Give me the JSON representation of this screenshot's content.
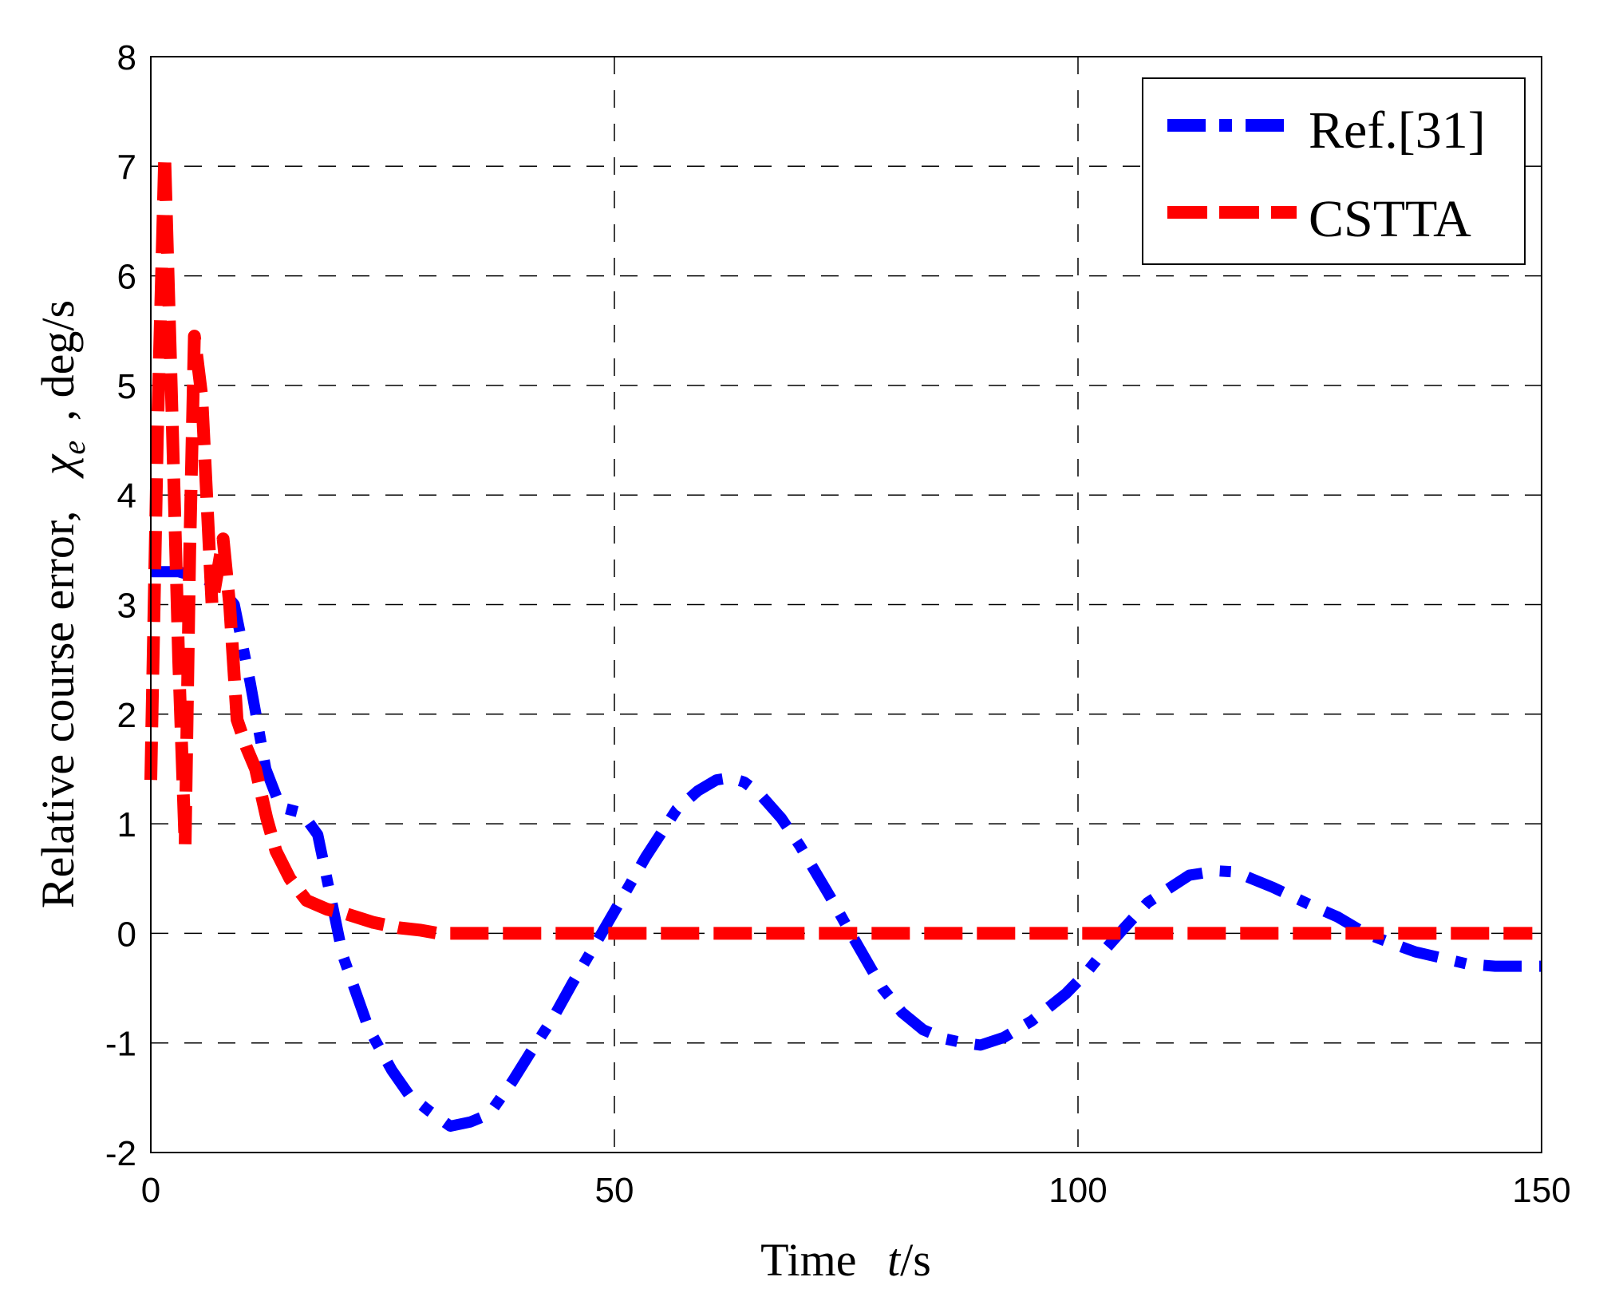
{
  "chart_data": {
    "type": "line",
    "title": "",
    "xlabel": "Time  t/s",
    "xlabel_parts": {
      "prefix": "Time",
      "italic": "t",
      "suffix": "/s"
    },
    "ylabel": "Relative course error,  χe , deg/s",
    "ylabel_parts": {
      "prefix": "Relative course error,",
      "symbol": "χ",
      "subscript": "e",
      "suffix": ", deg/s"
    },
    "xlim": [
      0,
      150
    ],
    "ylim": [
      -2,
      8
    ],
    "xticks": [
      0,
      50,
      100,
      150
    ],
    "yticks": [
      -2,
      -1,
      0,
      1,
      2,
      3,
      4,
      5,
      6,
      7,
      8
    ],
    "grid": true,
    "grid_style": "dashed",
    "legend_position": "upper right",
    "series": [
      {
        "name": "Ref.[31]",
        "color": "#0000ff",
        "style": "dash-dot",
        "x": [
          0,
          1,
          3,
          5,
          7,
          9,
          10.7,
          12.4,
          14,
          16.3,
          18,
          19.6,
          20.7,
          23.5,
          26,
          27.9,
          30,
          32.3,
          34.5,
          36.5,
          39,
          41,
          43.4,
          45.5,
          47.8,
          50,
          53.4,
          56.7,
          59,
          61,
          62.5,
          64,
          65.6,
          68,
          70,
          73.3,
          75.5,
          78.9,
          81,
          83.3,
          85.5,
          87.7,
          89.5,
          92,
          95,
          98.7,
          101,
          103,
          105,
          107.5,
          110,
          112,
          115,
          117,
          118.7,
          121,
          125.3,
          128,
          131,
          133.5,
          136.4,
          139,
          142,
          145,
          148,
          150
        ],
        "y": [
          3.3,
          3.3,
          3.3,
          3.25,
          3.2,
          3.0,
          2.3,
          1.5,
          1.15,
          1.1,
          0.9,
          0.25,
          -0.2,
          -0.87,
          -1.25,
          -1.48,
          -1.62,
          -1.76,
          -1.72,
          -1.65,
          -1.35,
          -1.08,
          -0.77,
          -0.45,
          -0.12,
          0.2,
          0.7,
          1.13,
          1.3,
          1.4,
          1.42,
          1.38,
          1.28,
          1.05,
          0.8,
          0.33,
          0.0,
          -0.5,
          -0.72,
          -0.88,
          -0.96,
          -1.0,
          -1.02,
          -0.95,
          -0.8,
          -0.55,
          -0.35,
          -0.14,
          0.05,
          0.28,
          0.42,
          0.53,
          0.57,
          0.56,
          0.5,
          0.42,
          0.25,
          0.15,
          0.0,
          -0.08,
          -0.17,
          -0.22,
          -0.28,
          -0.3,
          -0.3,
          -0.3
        ]
      },
      {
        "name": "CSTTA",
        "color": "#ff0000",
        "style": "dashed",
        "x": [
          0,
          0.7,
          1.5,
          2.2,
          3.0,
          3.7,
          4.2,
          4.7,
          5.5,
          6.6,
          7.2,
          7.8,
          8.5,
          9.3,
          10.3,
          11.3,
          12.5,
          13.5,
          15,
          16.8,
          19,
          21,
          24,
          26.8,
          29,
          31,
          35,
          50,
          75,
          100,
          125,
          149
        ],
        "y": [
          1.4,
          4.5,
          7.1,
          5.0,
          2.5,
          0.8,
          3.5,
          5.45,
          4.9,
          3.0,
          3.3,
          3.6,
          3.0,
          1.95,
          1.7,
          1.5,
          1.05,
          0.75,
          0.5,
          0.3,
          0.22,
          0.18,
          0.1,
          0.05,
          0.03,
          0.0,
          0.0,
          0.0,
          0.0,
          0.0,
          0.0,
          0.0
        ]
      }
    ]
  },
  "legend": {
    "items": [
      {
        "label": "Ref.[31]",
        "color": "#0000ff"
      },
      {
        "label": "CSTTA",
        "color": "#ff0000"
      }
    ]
  },
  "axes": {
    "x_tick_labels": [
      "0",
      "50",
      "100",
      "150"
    ],
    "y_tick_labels": [
      "-2",
      "-1",
      "0",
      "1",
      "2",
      "3",
      "4",
      "5",
      "6",
      "7",
      "8"
    ]
  }
}
